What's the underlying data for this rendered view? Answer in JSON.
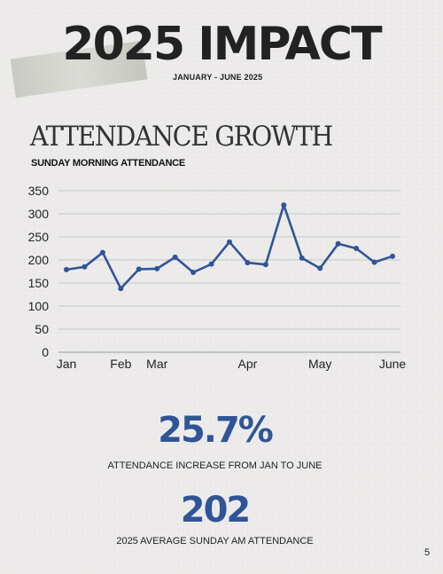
{
  "header": {
    "title": "2025 IMPACT",
    "subtitle": "JANUARY - JUNE 2025"
  },
  "section": {
    "title": "ATTENDANCE GROWTH"
  },
  "chart_data": {
    "type": "line",
    "title": "SUNDAY MORNING ATTENDANCE",
    "xlabel": "",
    "ylabel": "",
    "ylim": [
      0,
      350
    ],
    "yticks": [
      0,
      50,
      100,
      150,
      200,
      250,
      300,
      350
    ],
    "x_tick_labels": [
      "Jan",
      "Feb",
      "Mar",
      "Apr",
      "May",
      "June"
    ],
    "x_tick_positions": [
      0,
      3,
      5,
      10,
      14,
      18
    ],
    "grid": true,
    "series": [
      {
        "color": "#2f5597",
        "values": [
          179,
          185,
          216,
          138,
          180,
          181,
          206,
          173,
          191,
          239,
          194,
          190,
          319,
          204,
          182,
          235,
          225,
          195,
          208
        ]
      }
    ]
  },
  "stats": [
    {
      "value": "25.7%",
      "label": "ATTENDANCE INCREASE FROM JAN TO JUNE"
    },
    {
      "value": "202",
      "label": "2025 AVERAGE SUNDAY AM ATTENDANCE"
    }
  ],
  "page_number": "5"
}
